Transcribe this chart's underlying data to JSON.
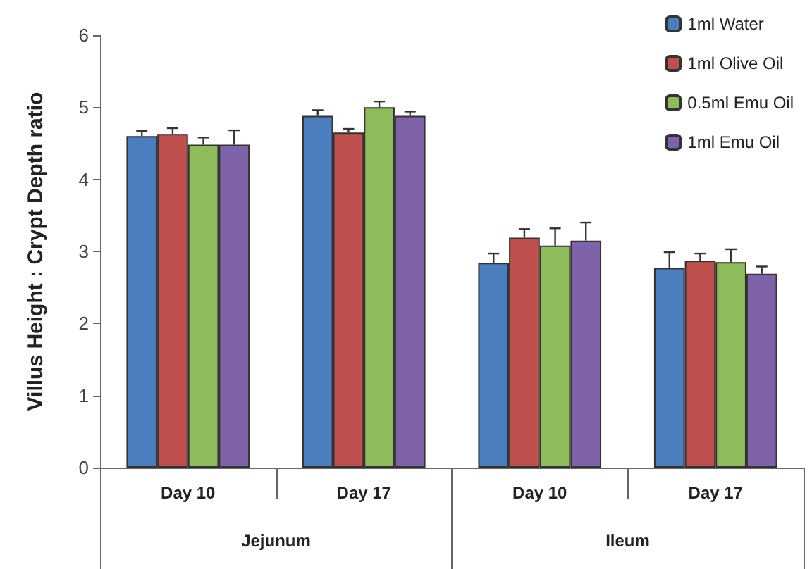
{
  "chart_data": {
    "type": "bar",
    "ylabel": "Villus Height : Crypt Depth ratio",
    "categories": [
      "Day 10",
      "Day 17",
      "Day 10",
      "Day 17"
    ],
    "annotations": [
      "Jejunum",
      "Ileum"
    ],
    "ylim": [
      0,
      6
    ],
    "yticks": [
      0,
      1,
      2,
      3,
      4,
      5,
      6
    ],
    "grid": false,
    "legend": "top right",
    "series": [
      {
        "name": "1ml Water",
        "color": "#4a7ebf",
        "values": [
          4.6,
          4.88,
          2.84,
          2.77
        ],
        "errors": [
          0.07,
          0.08,
          0.13,
          0.22
        ]
      },
      {
        "name": "1ml Olive Oil",
        "color": "#c0504d",
        "values": [
          4.63,
          4.65,
          3.19,
          2.87
        ],
        "errors": [
          0.08,
          0.05,
          0.12,
          0.1
        ]
      },
      {
        "name": "0.5ml Emu Oil",
        "color": "#8fbc5a",
        "values": [
          4.48,
          5.0,
          3.08,
          2.85
        ],
        "errors": [
          0.1,
          0.08,
          0.24,
          0.18
        ]
      },
      {
        "name": "1ml Emu Oil",
        "color": "#7f63a8",
        "values": [
          4.48,
          4.88,
          3.15,
          2.69
        ],
        "errors": [
          0.2,
          0.06,
          0.25,
          0.1
        ]
      }
    ]
  }
}
